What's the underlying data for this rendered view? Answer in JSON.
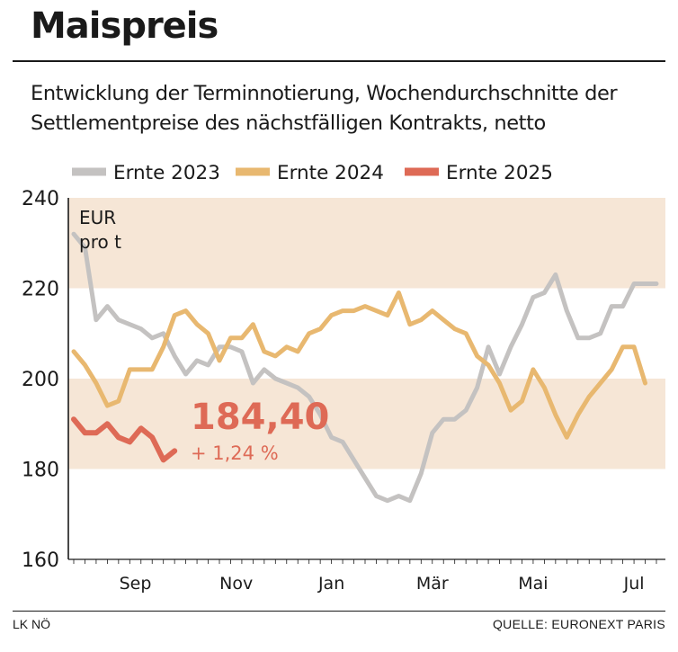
{
  "title": "Maispreis",
  "subtitle": "Entwicklung der Terminnotierung, Wochendurchschnitte der Settlementpreise des nächstfälligen Kontrakts, netto",
  "footer": {
    "left": "LK NÖ",
    "right": "QUELLE: EURONEXT PARIS"
  },
  "colors": {
    "band": "#f6e6d6",
    "ernte2023": "#c4c2c1",
    "ernte2024": "#e8b870",
    "ernte2025": "#de6a56",
    "text": "#1a1a1a"
  },
  "chart_data": {
    "type": "line",
    "unit_label": [
      "EUR",
      "pro t"
    ],
    "ylim": [
      160,
      240
    ],
    "yticks": [
      160,
      180,
      200,
      220,
      240
    ],
    "bands": [
      [
        180,
        200
      ],
      [
        220,
        240
      ]
    ],
    "x_range": [
      0,
      52
    ],
    "month_labels": [
      {
        "label": "Sep",
        "x": 5.5
      },
      {
        "label": "Nov",
        "x": 14.5
      },
      {
        "label": "Jan",
        "x": 23
      },
      {
        "label": "Mär",
        "x": 32
      },
      {
        "label": "Mai",
        "x": 41
      },
      {
        "label": "Jul",
        "x": 50
      }
    ],
    "series": [
      {
        "name": "Ernte 2023",
        "color": "#c4c2c1",
        "x": [
          0,
          1,
          2,
          3,
          4,
          5,
          6,
          7,
          8,
          9,
          10,
          11,
          12,
          13,
          14,
          15,
          16,
          17,
          18,
          19,
          20,
          21,
          22,
          23,
          24,
          25,
          26,
          27,
          28,
          29,
          30,
          31,
          32,
          33,
          34,
          35,
          36,
          37,
          38,
          39,
          40,
          41,
          42,
          43,
          44,
          45,
          46,
          47,
          48,
          49,
          50,
          51,
          52
        ],
        "values": [
          232,
          229,
          213,
          216,
          213,
          212,
          211,
          209,
          210,
          205,
          201,
          204,
          203,
          207,
          207,
          206,
          199,
          202,
          200,
          199,
          198,
          196,
          192,
          187,
          186,
          182,
          178,
          174,
          173,
          174,
          173,
          179,
          188,
          191,
          191,
          193,
          198,
          207,
          201,
          207,
          212,
          218,
          219,
          223,
          215,
          209,
          209,
          210,
          216,
          216,
          221,
          221,
          221
        ]
      },
      {
        "name": "Ernte 2024",
        "color": "#e8b870",
        "x": [
          0,
          1,
          2,
          3,
          4,
          5,
          6,
          7,
          8,
          9,
          10,
          11,
          12,
          13,
          14,
          15,
          16,
          17,
          18,
          19,
          20,
          21,
          22,
          23,
          24,
          25,
          26,
          27,
          28,
          29,
          30,
          31,
          32,
          33,
          34,
          35,
          36,
          37,
          38,
          39,
          40,
          41,
          42,
          43,
          44,
          45,
          46,
          47,
          48,
          49,
          50,
          51
        ],
        "values": [
          206,
          203,
          199,
          194,
          195,
          202,
          202,
          202,
          207,
          214,
          215,
          212,
          210,
          204,
          209,
          209,
          212,
          206,
          205,
          207,
          206,
          210,
          211,
          214,
          215,
          215,
          216,
          215,
          214,
          219,
          212,
          213,
          215,
          213,
          211,
          210,
          205,
          203,
          199,
          193,
          195,
          202,
          198,
          192,
          187,
          192,
          196,
          199,
          202,
          207,
          207,
          199
        ]
      },
      {
        "name": "Ernte 2025",
        "color": "#de6a56",
        "x": [
          0,
          1,
          2,
          3,
          4,
          5,
          6,
          7,
          8,
          9
        ],
        "values": [
          191,
          188,
          188,
          190,
          187,
          186,
          189,
          187,
          182,
          184
        ]
      }
    ],
    "annotation": {
      "value": "184,40",
      "change": "+ 1,24 %"
    }
  }
}
